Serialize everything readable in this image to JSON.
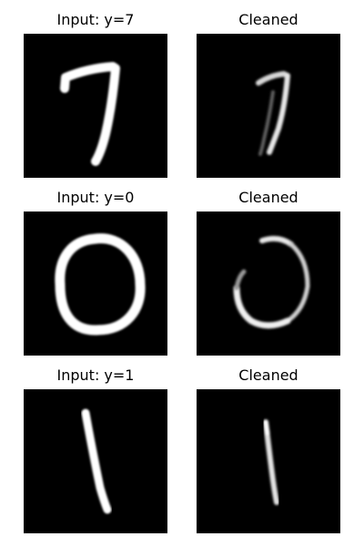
{
  "rows": [
    {
      "input_title": "Input: y=7",
      "cleaned_title": "Cleaned",
      "digit": "7"
    },
    {
      "input_title": "Input: y=0",
      "cleaned_title": "Cleaned",
      "digit": "0"
    },
    {
      "input_title": "Input: y=1",
      "cleaned_title": "Cleaned",
      "digit": "1"
    }
  ],
  "colors": {
    "background": "#000000",
    "stroke": "#ffffff",
    "page": "#ffffff"
  }
}
